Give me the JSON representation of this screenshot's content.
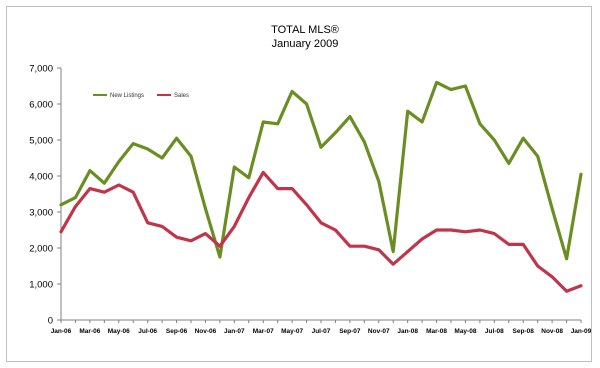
{
  "chart_data": {
    "type": "line",
    "title": "TOTAL MLS®",
    "subtitle": "January 2009",
    "xlabel": "",
    "ylabel": "",
    "ylim": [
      0,
      7000
    ],
    "yticks": [
      0,
      1000,
      2000,
      3000,
      4000,
      5000,
      6000,
      7000
    ],
    "ytick_labels": [
      "0",
      "1,000",
      "2,000",
      "3,000",
      "4,000",
      "5,000",
      "6,000",
      "7,000"
    ],
    "x": [
      "Jan-06",
      "Feb-06",
      "Mar-06",
      "Apr-06",
      "May-06",
      "Jun-06",
      "Jul-06",
      "Aug-06",
      "Sep-06",
      "Oct-06",
      "Nov-06",
      "Dec-06",
      "Jan-07",
      "Feb-07",
      "Mar-07",
      "Apr-07",
      "May-07",
      "Jun-07",
      "Jul-07",
      "Aug-07",
      "Sep-07",
      "Oct-07",
      "Nov-07",
      "Dec-07",
      "Jan-08",
      "Feb-08",
      "Mar-08",
      "Apr-08",
      "May-08",
      "Jun-08",
      "Jul-08",
      "Aug-08",
      "Sep-08",
      "Oct-08",
      "Nov-08",
      "Dec-08",
      "Jan-09"
    ],
    "xtick_labels": [
      "Jan-06",
      "Mar-06",
      "May-06",
      "Jul-06",
      "Sep-06",
      "Nov-06",
      "Jan-07",
      "Mar-07",
      "May-07",
      "Jul-07",
      "Sep-07",
      "Nov-07",
      "Jan-08",
      "Mar-08",
      "May-08",
      "Jul-08",
      "Sep-08",
      "Nov-08",
      "Jan-09"
    ],
    "grid": false,
    "legend_position": "top-left",
    "series": [
      {
        "name": "New Listings",
        "color": "#6b8e23",
        "values": [
          3200,
          3400,
          4150,
          3800,
          4400,
          4900,
          4750,
          4500,
          5050,
          4550,
          3100,
          1750,
          4250,
          3950,
          5500,
          5450,
          6350,
          6000,
          4800,
          5200,
          5650,
          4950,
          3850,
          1900,
          5800,
          5500,
          6600,
          6400,
          6500,
          5450,
          5000,
          4350,
          5050,
          4550,
          3100,
          1700,
          4050
        ]
      },
      {
        "name": "Sales",
        "color": "#c0354a",
        "values": [
          2450,
          3150,
          3650,
          3550,
          3750,
          3550,
          2700,
          2600,
          2300,
          2200,
          2400,
          2050,
          2600,
          3400,
          4100,
          3650,
          3650,
          3200,
          2700,
          2500,
          2050,
          2050,
          1950,
          1550,
          1900,
          2250,
          2500,
          2500,
          2450,
          2500,
          2400,
          2100,
          2100,
          1500,
          1200,
          800,
          950
        ]
      }
    ]
  }
}
